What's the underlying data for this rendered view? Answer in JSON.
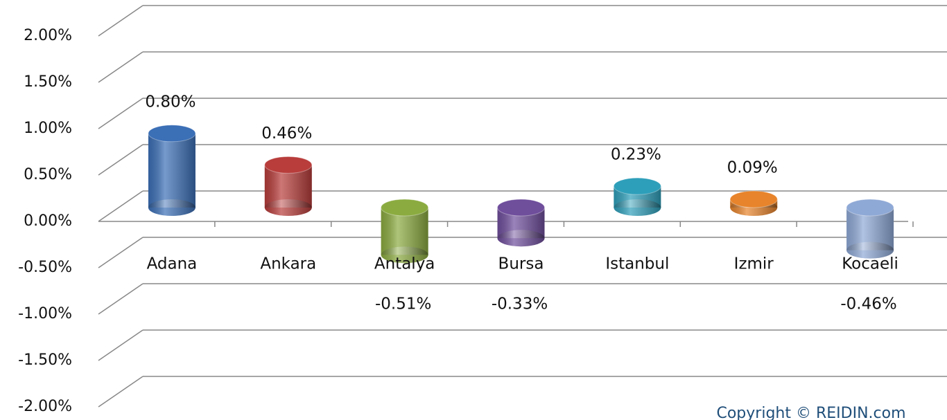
{
  "chart_data": {
    "type": "bar3d",
    "categories": [
      "Adana",
      "Ankara",
      "Antalya",
      "Bursa",
      "Istanbul",
      "Izmir",
      "Kocaeli"
    ],
    "values": [
      0.8,
      0.46,
      -0.51,
      -0.33,
      0.23,
      0.09,
      -0.46
    ],
    "value_labels": [
      "0.80%",
      "0.46%",
      "-0.51%",
      "-0.33%",
      "0.23%",
      "0.09%",
      "-0.46%"
    ],
    "colors": [
      "#3b6fb6",
      "#b83d3b",
      "#8bab40",
      "#6f4e9c",
      "#2e9fba",
      "#e8842b",
      "#8fa9d6"
    ],
    "ylim": [
      -2,
      2
    ],
    "yticks": [
      {
        "value": -2,
        "label": "-2.00%"
      },
      {
        "value": -1.5,
        "label": "-1.50%"
      },
      {
        "value": -1,
        "label": "-1.00%"
      },
      {
        "value": -0.5,
        "label": "-0.50%"
      },
      {
        "value": 0,
        "label": "0.00%"
      },
      {
        "value": 0.5,
        "label": "0.50%"
      },
      {
        "value": 1,
        "label": "1.00%"
      },
      {
        "value": 1.5,
        "label": "1.50%"
      },
      {
        "value": 2,
        "label": "2.00%"
      }
    ],
    "grid": true,
    "copyright": "Copyright © REIDIN.com"
  }
}
